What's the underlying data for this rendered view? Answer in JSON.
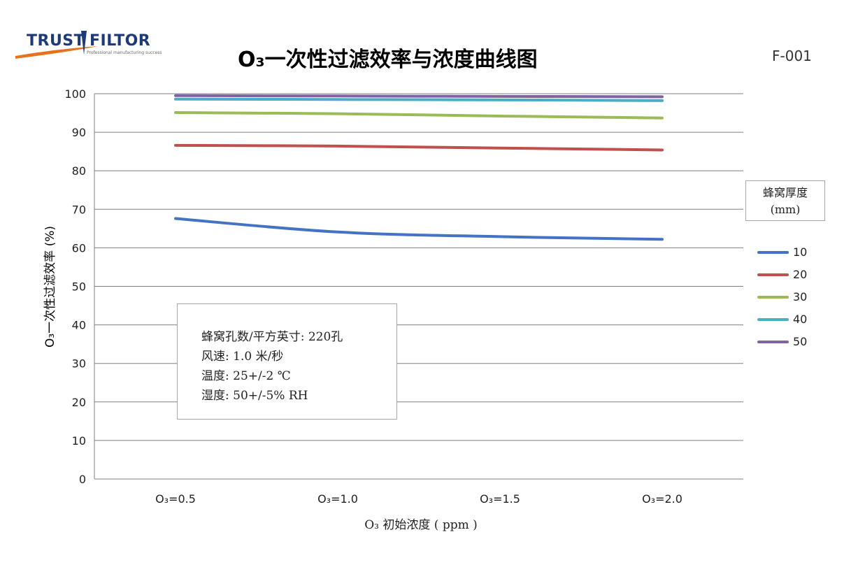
{
  "header": {
    "logo_left": "TRUST",
    "logo_right": "FILTOR",
    "logo_tagline": "Professional manufacturing success",
    "title": "O₃一次性过滤效率与浓度曲线图",
    "code": "F-001"
  },
  "note": {
    "lines": [
      "蜂窝孔数/平方英寸: 220孔",
      "风速: 1.0 米/秒",
      "温度: 25+/-2 ℃",
      "湿度: 50+/-5% RH"
    ]
  },
  "legend": {
    "title_line1": "蜂窝厚度",
    "title_line2": "(mm)",
    "placement": "right"
  },
  "colors": {
    "axis": "#808080",
    "grid": "#808080",
    "series": [
      "#4472c4",
      "#c0504d",
      "#9bbb59",
      "#4bacc6",
      "#8064a2"
    ]
  },
  "chart_data": {
    "type": "line",
    "title": "O₃一次性过滤效率与浓度曲线图",
    "xlabel": "O₃ 初始浓度 ( ppm )",
    "ylabel": "O₃一次性过滤效率 (%)",
    "categories": [
      "O₃=0.5",
      "O₃=1.0",
      "O₃=1.5",
      "O₃=2.0"
    ],
    "yticks": [
      "0",
      "10",
      "20",
      "30",
      "40",
      "50",
      "60",
      "70",
      "80",
      "90",
      "100"
    ],
    "ylim": [
      0,
      100
    ],
    "grid": true,
    "smooth": true,
    "series": [
      {
        "name": "10",
        "values": [
          67.6,
          64.1,
          62.9,
          62.2
        ]
      },
      {
        "name": "20",
        "values": [
          86.6,
          86.4,
          85.9,
          85.4
        ]
      },
      {
        "name": "30",
        "values": [
          95.1,
          94.8,
          94.2,
          93.7
        ]
      },
      {
        "name": "40",
        "values": [
          98.6,
          98.5,
          98.4,
          98.2
        ]
      },
      {
        "name": "50",
        "values": [
          99.5,
          99.4,
          99.3,
          99.2
        ]
      }
    ]
  }
}
